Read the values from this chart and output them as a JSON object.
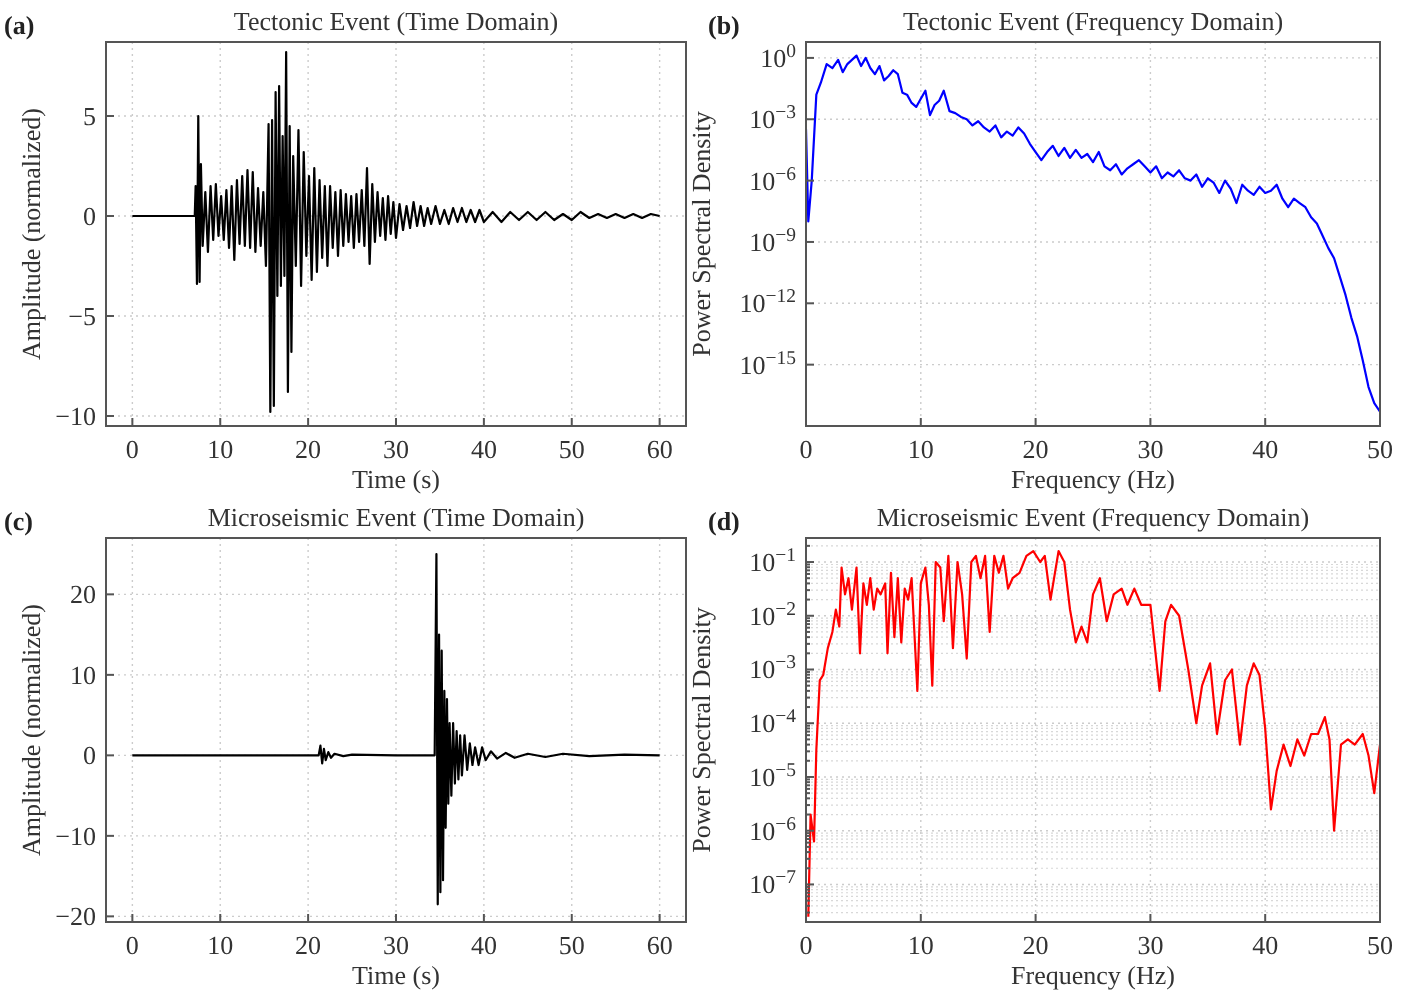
{
  "chart_data": [
    {
      "type": "line",
      "title": "Tectonic Event (Time Domain)",
      "xlabel": "Time (s)",
      "ylabel": "Amplitude (normalized)",
      "annotations": [
        "(a)"
      ],
      "grid": true,
      "xlim": [
        -3,
        63
      ],
      "xticks": [
        0,
        10,
        20,
        30,
        40,
        50,
        60
      ],
      "ylim": [
        -10.5,
        8.7
      ],
      "yticks": [
        -10,
        -5,
        0,
        5
      ],
      "x": [
        0,
        7.1,
        7.2,
        7.35,
        7.5,
        7.65,
        7.8,
        8.0,
        8.3,
        8.6,
        8.9,
        9.2,
        9.5,
        9.8,
        10.1,
        10.4,
        10.7,
        11,
        11.3,
        11.6,
        11.9,
        12.2,
        12.5,
        12.8,
        13.1,
        13.4,
        13.7,
        14.0,
        14.3,
        14.6,
        14.9,
        15.2,
        15.5,
        15.7,
        15.9,
        16.1,
        16.3,
        16.5,
        16.7,
        16.9,
        17.1,
        17.3,
        17.5,
        17.7,
        17.9,
        18.1,
        18.3,
        18.6,
        18.9,
        19.2,
        19.5,
        19.8,
        20.1,
        20.4,
        20.7,
        21.0,
        21.3,
        21.6,
        21.9,
        22.2,
        22.5,
        22.8,
        23.1,
        23.4,
        23.7,
        24.0,
        24.3,
        24.6,
        24.9,
        25.2,
        25.5,
        25.8,
        26.1,
        26.4,
        26.7,
        27.0,
        27.3,
        27.6,
        27.9,
        28.2,
        28.5,
        28.8,
        29.1,
        29.4,
        29.7,
        30.0,
        30.4,
        30.8,
        31.2,
        31.6,
        32.0,
        32.4,
        32.8,
        33.2,
        33.6,
        34.0,
        34.5,
        35,
        35.5,
        36,
        36.5,
        37,
        37.5,
        38,
        38.5,
        39,
        39.5,
        40,
        41,
        42,
        43,
        44,
        45,
        46,
        47,
        48,
        49,
        50,
        51,
        52,
        53,
        54,
        55,
        56,
        57,
        58,
        59,
        60
      ],
      "series": [
        {
          "color": "#000000",
          "values": [
            0,
            0,
            1.5,
            -3.4,
            5,
            -3.3,
            2.6,
            -1.5,
            1.2,
            -1.8,
            1.5,
            -1.2,
            1.6,
            -1.0,
            1.0,
            -1.2,
            1.3,
            -1.6,
            1.5,
            -2.2,
            1.8,
            -1.4,
            2.0,
            -1.5,
            2.3,
            -1.6,
            2.2,
            -1.8,
            1.4,
            -1.5,
            1.2,
            -2.5,
            4.6,
            -9.8,
            4.8,
            -9.5,
            6.2,
            -4.0,
            6.5,
            -3.5,
            4.0,
            -3.0,
            8.2,
            -8.8,
            4.5,
            -6.8,
            3.0,
            -2.5,
            4.3,
            -3.5,
            3.2,
            -2.0,
            2.0,
            -3.2,
            2.4,
            -2.8,
            1.8,
            -2.1,
            1.5,
            -2.5,
            1.5,
            -1.6,
            1.2,
            -2.0,
            1.3,
            -1.5,
            1.1,
            -1.3,
            1.0,
            -1.6,
            1.1,
            -1.3,
            1.3,
            -1.5,
            2.4,
            -2.4,
            1.6,
            -1.3,
            1.2,
            -1.0,
            0.9,
            -1.2,
            1.0,
            -0.9,
            0.7,
            -1.1,
            0.6,
            -0.7,
            0.5,
            -0.6,
            0.7,
            -0.5,
            0.5,
            -0.5,
            0.4,
            -0.4,
            0.5,
            -0.4,
            0.3,
            -0.4,
            0.4,
            -0.3,
            0.4,
            -0.3,
            0.3,
            -0.3,
            0.3,
            -0.3,
            0.2,
            -0.3,
            0.2,
            -0.2,
            0.2,
            -0.2,
            0.2,
            -0.2,
            0.1,
            -0.2,
            0.2,
            -0.1,
            0.1,
            -0.1,
            0.1,
            -0.1,
            0.1,
            -0.1,
            0.1,
            0
          ]
        }
      ]
    },
    {
      "type": "line",
      "title": "Tectonic Event (Frequency Domain)",
      "xlabel": "Frequency (Hz)",
      "ylabel": "Power Spectral Density",
      "annotations": [
        "(b)"
      ],
      "grid": true,
      "log": "y",
      "xlim": [
        0,
        50
      ],
      "xticks": [
        0,
        10,
        20,
        30,
        40,
        50
      ],
      "ylim": [
        1e-18,
        6
      ],
      "yticks": [
        {
          "value": 1e-15,
          "label": "10$^{−15}$"
        },
        {
          "value": 1e-12,
          "label": "10$^{−12}$"
        },
        {
          "value": 1e-09,
          "label": "10$^{−9}$"
        },
        {
          "value": 1e-06,
          "label": "10$^{−6}$"
        },
        {
          "value": 0.001,
          "label": "10$^{−3}$"
        },
        {
          "value": 1,
          "label": "10$^{0}$"
        }
      ],
      "x": [
        0,
        0.2,
        0.5,
        0.9,
        1.3,
        1.8,
        2.3,
        2.8,
        3.2,
        3.6,
        4.0,
        4.4,
        4.8,
        5.2,
        5.6,
        6.0,
        6.4,
        6.8,
        7.2,
        7.6,
        8.0,
        8.4,
        8.8,
        9.2,
        9.6,
        10,
        10.4,
        10.8,
        11.2,
        11.6,
        12,
        12.5,
        13,
        13.5,
        14,
        14.5,
        15,
        15.5,
        16,
        16.5,
        17,
        17.5,
        18,
        18.5,
        19,
        19.5,
        20,
        20.5,
        21,
        21.5,
        22,
        22.5,
        23,
        23.5,
        24,
        24.5,
        25,
        25.5,
        26,
        26.5,
        27,
        27.5,
        28,
        28.5,
        29,
        29.5,
        30,
        30.5,
        31,
        31.5,
        32,
        32.5,
        33,
        33.5,
        34,
        34.5,
        35,
        35.5,
        36,
        36.5,
        37,
        37.5,
        38,
        38.5,
        39,
        39.5,
        40,
        40.5,
        41,
        41.5,
        42,
        42.5,
        43,
        43.5,
        44,
        44.5,
        45,
        45.5,
        46,
        46.5,
        47,
        47.5,
        48,
        48.5,
        49,
        49.5,
        50
      ],
      "series": [
        {
          "color": "#0000ff",
          "values": [
            0.00032,
            1e-08,
            1e-06,
            0.016,
            0.063,
            0.5,
            0.32,
            0.8,
            0.2,
            0.5,
            0.8,
            1.3,
            0.4,
            1,
            0.32,
            0.16,
            0.4,
            0.08,
            0.13,
            0.25,
            0.16,
            0.02,
            0.016,
            0.0063,
            0.004,
            0.01,
            0.025,
            0.0016,
            0.005,
            0.008,
            0.025,
            0.0025,
            0.002,
            0.0013,
            0.001,
            0.0005,
            0.0008,
            0.0004,
            0.00025,
            0.0005,
            0.00013,
            0.00025,
            0.00016,
            0.0004,
            0.0002,
            6.3e-05,
            2.5e-05,
            1e-05,
            2.5e-05,
            5e-05,
            1.6e-05,
            4e-05,
            1.3e-05,
            3.2e-05,
            1.3e-05,
            2e-05,
            8e-06,
            2.5e-05,
            5e-06,
            3.2e-06,
            6.3e-06,
            2e-06,
            4e-06,
            6.3e-06,
            1e-05,
            5e-06,
            2.5e-06,
            5e-06,
            1.3e-06,
            2.5e-06,
            1.6e-06,
            3.2e-06,
            1.3e-06,
            1e-06,
            2e-06,
            5e-07,
            1.3e-06,
            8e-07,
            2.5e-07,
            1e-06,
            4e-07,
            8e-08,
            6.3e-07,
            3.2e-07,
            2e-07,
            5e-07,
            2.5e-07,
            3.2e-07,
            6.3e-07,
            1.3e-07,
            5e-08,
            1.3e-07,
            8e-08,
            5e-08,
            1.6e-08,
            8e-09,
            2e-09,
            5e-10,
            1.6e-10,
            2e-11,
            2.5e-12,
            2e-13,
            2.5e-14,
            1.6e-15,
            8e-17,
            1.3e-17,
            5e-18
          ]
        }
      ]
    },
    {
      "type": "line",
      "title": "Microseismic Event (Time Domain)",
      "xlabel": "Time (s)",
      "ylabel": "Amplitude (normalized)",
      "annotations": [
        "(c)"
      ],
      "grid": true,
      "xlim": [
        -3,
        63
      ],
      "xticks": [
        0,
        10,
        20,
        30,
        40,
        50,
        60
      ],
      "ylim": [
        -20.7,
        27
      ],
      "yticks": [
        -20,
        -10,
        0,
        10,
        20
      ],
      "x": [
        0,
        21.2,
        21.4,
        21.6,
        21.8,
        22.0,
        22.3,
        22.6,
        23,
        24,
        25,
        30,
        34.4,
        34.6,
        34.75,
        34.9,
        35.05,
        35.2,
        35.35,
        35.5,
        35.65,
        35.8,
        35.95,
        36.1,
        36.3,
        36.5,
        36.7,
        36.9,
        37.1,
        37.3,
        37.5,
        37.8,
        38.1,
        38.4,
        38.7,
        39,
        39.4,
        39.8,
        40.2,
        40.8,
        41.5,
        42.5,
        43.5,
        45,
        47,
        49,
        52,
        56,
        60
      ],
      "series": [
        {
          "color": "#000000",
          "values": [
            0,
            0,
            1.2,
            -1.0,
            0.8,
            -0.6,
            0.4,
            -0.3,
            0.2,
            -0.1,
            0.1,
            0,
            0,
            25,
            -18.5,
            15,
            -17,
            13,
            -15.5,
            8,
            -9,
            7,
            -6,
            4,
            -5,
            4,
            -3.5,
            3,
            -3,
            2.5,
            -2.5,
            2.5,
            -1.8,
            1.5,
            -1.2,
            1,
            -1.2,
            1,
            -0.6,
            0.5,
            -0.4,
            0.3,
            -0.3,
            0.2,
            -0.2,
            0.2,
            -0.1,
            0.1,
            0
          ]
        }
      ]
    },
    {
      "type": "line",
      "title": "Microseismic Event (Frequency Domain)",
      "xlabel": "Frequency (Hz)",
      "ylabel": "Power Spectral Density",
      "annotations": [
        "(d)"
      ],
      "grid": true,
      "log": "y",
      "xlim": [
        0,
        50
      ],
      "xticks": [
        0,
        10,
        20,
        30,
        40,
        50
      ],
      "ylim": [
        2e-08,
        0.28
      ],
      "yticks": [
        {
          "value": 1e-07,
          "label": "10$^{−7}$"
        },
        {
          "value": 1e-06,
          "label": "10$^{−6}$"
        },
        {
          "value": 1e-05,
          "label": "10$^{−5}$"
        },
        {
          "value": 0.0001,
          "label": "10$^{−4}$"
        },
        {
          "value": 0.001,
          "label": "10$^{−3}$"
        },
        {
          "value": 0.01,
          "label": "10$^{−2}$"
        },
        {
          "value": 0.1,
          "label": "10$^{−1}$"
        }
      ],
      "x": [
        0.2,
        0.4,
        0.7,
        0.9,
        1.2,
        1.5,
        1.9,
        2.3,
        2.6,
        2.9,
        3.1,
        3.4,
        3.7,
        4.0,
        4.4,
        4.7,
        5.0,
        5.3,
        5.6,
        5.9,
        6.2,
        6.5,
        6.9,
        7.1,
        7.4,
        7.7,
        8.0,
        8.3,
        8.6,
        8.9,
        9.2,
        9.7,
        10.0,
        10.4,
        10.7,
        11.0,
        11.3,
        11.7,
        12.0,
        12.4,
        12.8,
        13.2,
        13.6,
        14.0,
        14.4,
        14.8,
        15.2,
        15.6,
        16.0,
        16.4,
        16.8,
        17.2,
        17.6,
        18.0,
        18.6,
        19.2,
        19.8,
        20.4,
        20.8,
        21.3,
        22.0,
        22.5,
        23.0,
        23.5,
        24.0,
        24.5,
        25.0,
        25.6,
        26.2,
        26.8,
        27.5,
        28.0,
        28.6,
        29.2,
        30.0,
        30.8,
        31.3,
        31.8,
        32.5,
        33.3,
        34.0,
        34.5,
        35.2,
        35.8,
        36.5,
        37.1,
        37.8,
        38.4,
        39.0,
        39.5,
        40.0,
        40.5,
        41.0,
        41.6,
        42.2,
        42.8,
        43.4,
        44.0,
        44.6,
        45.2,
        45.6,
        46.0,
        46.6,
        47.2,
        47.8,
        48.5,
        49.0,
        49.5,
        50.0
      ],
      "series": [
        {
          "color": "#ff0000",
          "values": [
            2.5e-08,
            2e-06,
            6.3e-07,
            3.2e-05,
            0.00063,
            0.00079,
            0.0025,
            0.005,
            0.013,
            0.0063,
            0.079,
            0.025,
            0.05,
            0.013,
            0.079,
            0.002,
            0.04,
            0.016,
            0.05,
            0.013,
            0.032,
            0.025,
            0.04,
            0.002,
            0.063,
            0.004,
            0.05,
            0.0032,
            0.032,
            0.02,
            0.05,
            0.0004,
            0.04,
            0.079,
            0.016,
            0.0005,
            0.1,
            0.079,
            0.0079,
            0.13,
            0.0025,
            0.1,
            0.025,
            0.0016,
            0.1,
            0.13,
            0.05,
            0.13,
            0.005,
            0.13,
            0.063,
            0.13,
            0.032,
            0.05,
            0.063,
            0.13,
            0.16,
            0.1,
            0.13,
            0.02,
            0.16,
            0.1,
            0.013,
            0.0032,
            0.0063,
            0.0032,
            0.025,
            0.05,
            0.0079,
            0.025,
            0.032,
            0.016,
            0.032,
            0.016,
            0.016,
            0.0004,
            0.0079,
            0.016,
            0.01,
            0.001,
            0.0001,
            0.0005,
            0.0013,
            6.3e-05,
            0.00063,
            0.001,
            4e-05,
            0.0005,
            0.0013,
            0.00079,
            7.9e-05,
            2.5e-06,
            1.3e-05,
            4e-05,
            1.6e-05,
            5e-05,
            2.5e-05,
            6.3e-05,
            6.3e-05,
            0.00013,
            5e-05,
            1e-06,
            4e-05,
            5e-05,
            4e-05,
            6.3e-05,
            2.5e-05,
            5e-06,
            4e-05
          ]
        }
      ]
    }
  ]
}
